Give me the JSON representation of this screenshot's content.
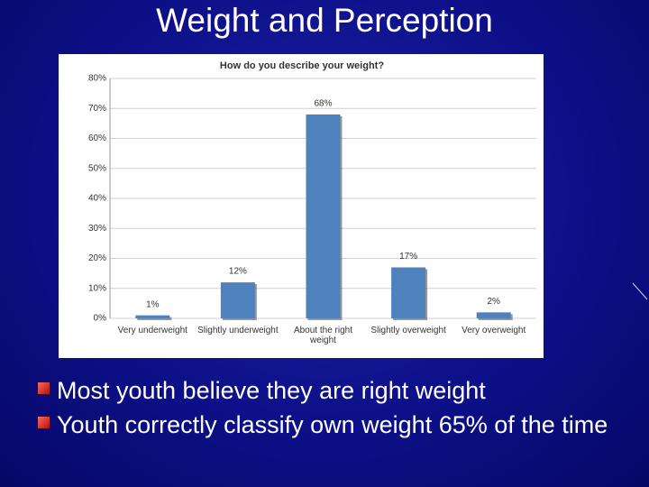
{
  "title": "Weight and Perception",
  "bullets": [
    "Most youth believe they are right weight",
    "Youth correctly classify own weight 65% of the time"
  ],
  "chart_data": {
    "type": "bar",
    "title": "How do you describe your weight?",
    "categories": [
      "Very underweight",
      "Slightly underweight",
      "About the right weight",
      "Slightly overweight",
      "Very overweight"
    ],
    "values": [
      1,
      12,
      68,
      17,
      2
    ],
    "value_labels": [
      "1%",
      "12%",
      "68%",
      "17%",
      "2%"
    ],
    "color": "#4f81bd",
    "ylim": [
      0,
      80
    ],
    "yticks": [
      {
        "value": 0,
        "label": "0%"
      },
      {
        "value": 10,
        "label": "10%"
      },
      {
        "value": 20,
        "label": "20%"
      },
      {
        "value": 30,
        "label": "30%"
      },
      {
        "value": 40,
        "label": "40%"
      },
      {
        "value": 50,
        "label": "50%"
      },
      {
        "value": 60,
        "label": "60%"
      },
      {
        "value": 70,
        "label": "70%"
      },
      {
        "value": 80,
        "label": "80%"
      }
    ],
    "grid": true
  }
}
